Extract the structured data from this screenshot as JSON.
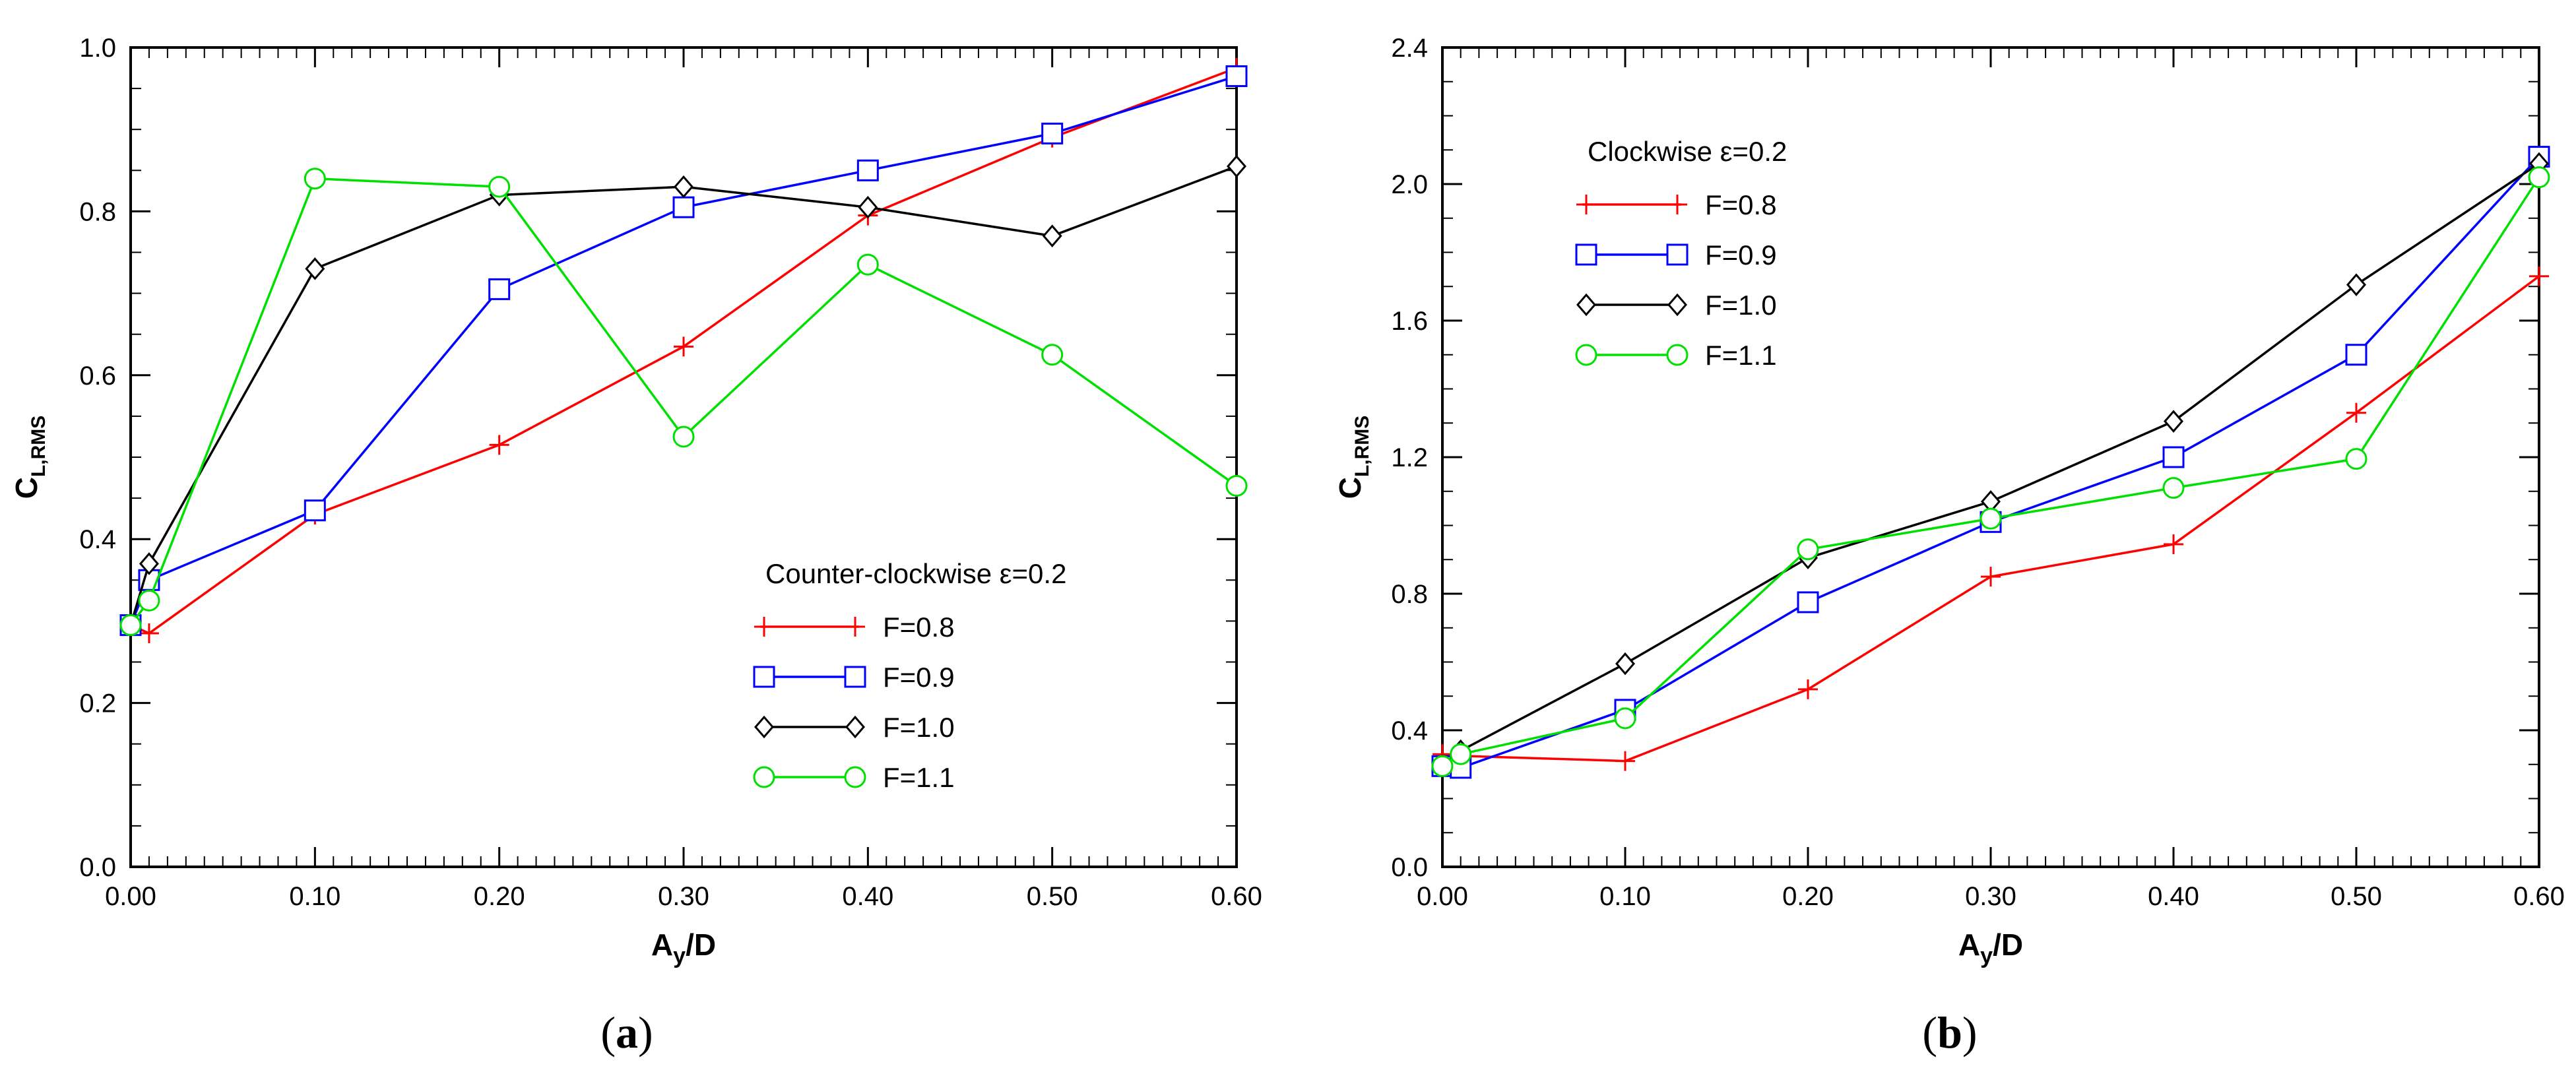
{
  "chart_data": [
    {
      "panel": "(a)",
      "caption_letter": "a",
      "type": "line",
      "xlabel_main": "A",
      "xlabel_sub": "y",
      "xlabel_rest": "/D",
      "ylabel_main": "C",
      "ylabel_sub": "L,RMS",
      "xlim": [
        0,
        0.6
      ],
      "ylim": [
        0,
        1.0
      ],
      "xticks": [
        0,
        0.1,
        0.2,
        0.3,
        0.4,
        0.5,
        0.6
      ],
      "xtick_labels": [
        "0.00",
        "0.10",
        "0.20",
        "0.30",
        "0.40",
        "0.50",
        "0.60"
      ],
      "yticks": [
        0,
        0.2,
        0.4,
        0.6,
        0.8,
        1.0
      ],
      "ytick_labels": [
        "0.0",
        "0.2",
        "0.4",
        "0.6",
        "0.8",
        "1.0"
      ],
      "legend_title": "Counter-clockwise ε=0.2",
      "legend_position": "lower-right",
      "x": [
        0,
        0.01,
        0.1,
        0.2,
        0.3,
        0.4,
        0.5,
        0.6
      ],
      "series": [
        {
          "name": "F=0.8",
          "color": "#ff0000",
          "marker": "plus",
          "values": [
            0.295,
            0.285,
            0.43,
            0.515,
            0.635,
            0.795,
            0.89,
            0.975
          ]
        },
        {
          "name": "F=0.9",
          "color": "#0000ff",
          "marker": "square",
          "values": [
            0.295,
            0.35,
            0.435,
            0.705,
            0.805,
            0.85,
            0.895,
            0.965
          ]
        },
        {
          "name": "F=1.0",
          "color": "#000000",
          "marker": "diamond",
          "values": [
            0.295,
            0.37,
            0.73,
            0.82,
            0.83,
            0.805,
            0.77,
            0.855
          ]
        },
        {
          "name": "F=1.1",
          "color": "#00e000",
          "marker": "circle",
          "values": [
            0.295,
            0.325,
            0.84,
            0.83,
            0.525,
            0.735,
            0.625,
            0.465
          ]
        }
      ]
    },
    {
      "panel": "(b)",
      "caption_letter": "b",
      "type": "line",
      "xlabel_main": "A",
      "xlabel_sub": "y",
      "xlabel_rest": "/D",
      "ylabel_main": "C",
      "ylabel_sub": "L,RMS",
      "xlim": [
        0,
        0.6
      ],
      "ylim": [
        0,
        2.4
      ],
      "xticks": [
        0,
        0.1,
        0.2,
        0.3,
        0.4,
        0.5,
        0.6
      ],
      "xtick_labels": [
        "0.00",
        "0.10",
        "0.20",
        "0.30",
        "0.40",
        "0.50",
        "0.60"
      ],
      "yticks": [
        0,
        0.4,
        0.8,
        1.2,
        1.6,
        2.0,
        2.4
      ],
      "ytick_labels": [
        "0.0",
        "0.4",
        "0.8",
        "1.2",
        "1.6",
        "2.0",
        "2.4"
      ],
      "legend_title": "Clockwise ε=0.2",
      "legend_position": "upper-left",
      "x": [
        0,
        0.01,
        0.1,
        0.2,
        0.3,
        0.4,
        0.5,
        0.6
      ],
      "series": [
        {
          "name": "F=0.8",
          "color": "#ff0000",
          "marker": "plus",
          "values": [
            0.33,
            0.325,
            0.31,
            0.52,
            0.85,
            0.945,
            1.33,
            1.73
          ]
        },
        {
          "name": "F=0.9",
          "color": "#0000ff",
          "marker": "square",
          "values": [
            0.295,
            0.29,
            0.46,
            0.775,
            1.01,
            1.2,
            1.5,
            2.08
          ]
        },
        {
          "name": "F=1.0",
          "color": "#000000",
          "marker": "diamond",
          "values": [
            0.295,
            0.34,
            0.595,
            0.905,
            1.07,
            1.305,
            1.705,
            2.06
          ]
        },
        {
          "name": "F=1.1",
          "color": "#00e000",
          "marker": "circle",
          "values": [
            0.295,
            0.33,
            0.435,
            0.93,
            1.02,
            1.11,
            1.195,
            2.02
          ]
        }
      ]
    }
  ]
}
